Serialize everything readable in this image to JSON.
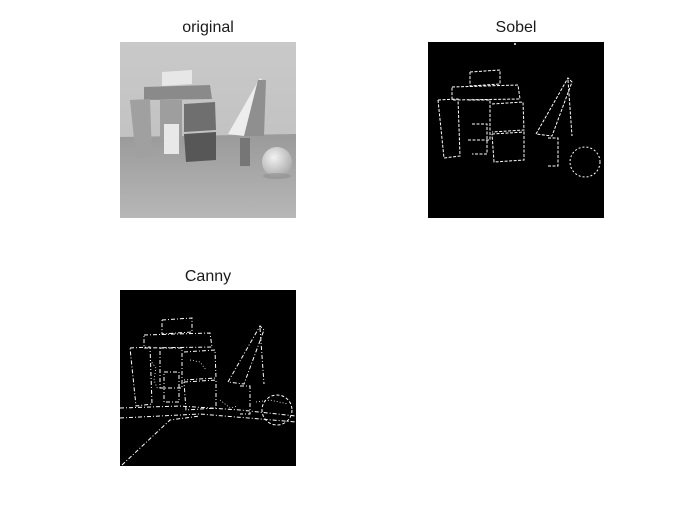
{
  "figure": {
    "panels": [
      {
        "title": "original",
        "kind": "grayscale-photo"
      },
      {
        "title": "Sobel",
        "kind": "edge-map"
      },
      {
        "title": "Canny",
        "kind": "edge-map"
      }
    ],
    "colors": {
      "background": "#ffffff",
      "edge_bg": "#000000",
      "edge_line": "#ffffff"
    }
  }
}
